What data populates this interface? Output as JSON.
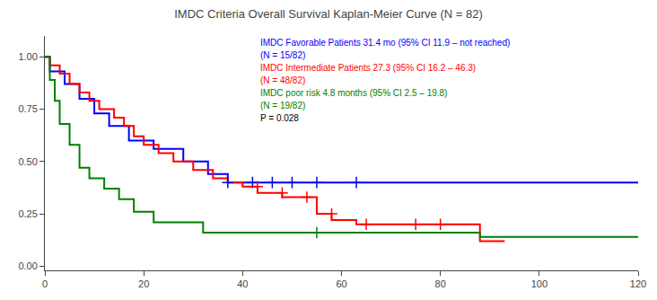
{
  "chart_data": {
    "type": "line",
    "title": "IMDC Criteria Overall Survival Kaplan-Meier Curve (N = 82)",
    "xlim": [
      0,
      120
    ],
    "ylim": [
      -0.02,
      1.1
    ],
    "xticks": [
      0,
      20,
      40,
      60,
      80,
      100,
      120
    ],
    "yticks": [
      {
        "value": 0.0,
        "label": "0.00"
      },
      {
        "value": 0.25,
        "label": "0.25"
      },
      {
        "value": 0.5,
        "label": "0.50"
      },
      {
        "value": 0.75,
        "label": "0.75"
      },
      {
        "value": 1.0,
        "label": "1.00"
      }
    ],
    "grid": false,
    "series": [
      {
        "type": "line",
        "color": "#0000FF",
        "x": [
          0,
          1,
          1,
          4,
          4,
          7,
          7,
          10,
          10,
          13,
          13,
          17,
          17,
          22,
          22,
          28,
          28,
          33,
          33,
          37,
          37,
          63,
          63,
          120
        ],
        "values": [
          1.0,
          1.0,
          0.93,
          0.93,
          0.87,
          0.87,
          0.8,
          0.8,
          0.73,
          0.73,
          0.67,
          0.67,
          0.6,
          0.6,
          0.56,
          0.56,
          0.5,
          0.5,
          0.44,
          0.44,
          0.4,
          0.4,
          0.4,
          0.4
        ]
      },
      {
        "type": "line",
        "color": "#FF0000",
        "x": [
          0,
          1,
          1,
          3,
          3,
          5,
          5,
          7,
          7,
          9,
          9,
          11,
          11,
          14,
          14,
          16,
          16,
          18,
          18,
          20,
          20,
          23,
          23,
          26,
          26,
          30,
          30,
          34,
          34,
          37,
          37,
          40,
          40,
          43,
          43,
          48,
          48,
          55,
          55,
          58,
          58,
          63,
          63,
          68,
          68,
          88,
          88,
          93
        ],
        "values": [
          1.0,
          1.0,
          0.96,
          0.96,
          0.92,
          0.92,
          0.87,
          0.87,
          0.83,
          0.83,
          0.79,
          0.79,
          0.75,
          0.75,
          0.71,
          0.71,
          0.67,
          0.67,
          0.62,
          0.62,
          0.58,
          0.58,
          0.54,
          0.54,
          0.5,
          0.5,
          0.46,
          0.46,
          0.42,
          0.42,
          0.4,
          0.4,
          0.38,
          0.38,
          0.35,
          0.35,
          0.33,
          0.33,
          0.25,
          0.25,
          0.22,
          0.22,
          0.2,
          0.2,
          0.2,
          0.2,
          0.12,
          0.12
        ]
      },
      {
        "type": "line",
        "color": "#008000",
        "x": [
          0,
          1,
          1,
          2,
          2,
          3,
          3,
          5,
          5,
          7,
          7,
          9,
          9,
          12,
          12,
          15,
          15,
          18,
          18,
          22,
          22,
          27,
          27,
          32,
          32,
          55,
          55,
          88,
          88,
          120
        ],
        "values": [
          1.0,
          1.0,
          0.89,
          0.89,
          0.79,
          0.79,
          0.68,
          0.68,
          0.58,
          0.58,
          0.47,
          0.47,
          0.42,
          0.42,
          0.37,
          0.37,
          0.32,
          0.32,
          0.26,
          0.26,
          0.21,
          0.21,
          0.21,
          0.21,
          0.16,
          0.16,
          0.16,
          0.16,
          0.14,
          0.14
        ]
      },
      {
        "type": "scatter",
        "marker": "+",
        "color": "#0000FF",
        "x": [
          37,
          42,
          46,
          50,
          55,
          63
        ],
        "values": [
          0.4,
          0.4,
          0.4,
          0.4,
          0.4,
          0.4
        ]
      },
      {
        "type": "scatter",
        "marker": "+",
        "color": "#FF0000",
        "x": [
          43,
          48,
          53,
          58,
          65,
          75,
          80
        ],
        "values": [
          0.38,
          0.35,
          0.33,
          0.25,
          0.2,
          0.2,
          0.2
        ]
      },
      {
        "type": "scatter",
        "marker": "+",
        "color": "#008000",
        "x": [
          55
        ],
        "values": [
          0.16
        ]
      }
    ],
    "annotations": [
      {
        "text": "IMDC Favorable Patients 31.4 mo (95% CI 11.9 – not reached)",
        "color": "#0000FF"
      },
      {
        "text": "(N = 15/82)",
        "color": "#0000FF"
      },
      {
        "text": "IMDC Intermediate Patients 27.3 (95% CI 16.2 – 46.3)",
        "color": "#FF0000"
      },
      {
        "text": "(N = 48/82)",
        "color": "#FF0000"
      },
      {
        "text": "IMDC poor risk 4.8 months (95% CI 2.5 – 19.8)",
        "color": "#008000"
      },
      {
        "text": "(N = 19/82)",
        "color": "#008000"
      },
      {
        "text": "P = 0.028",
        "color": "#000000"
      }
    ]
  }
}
